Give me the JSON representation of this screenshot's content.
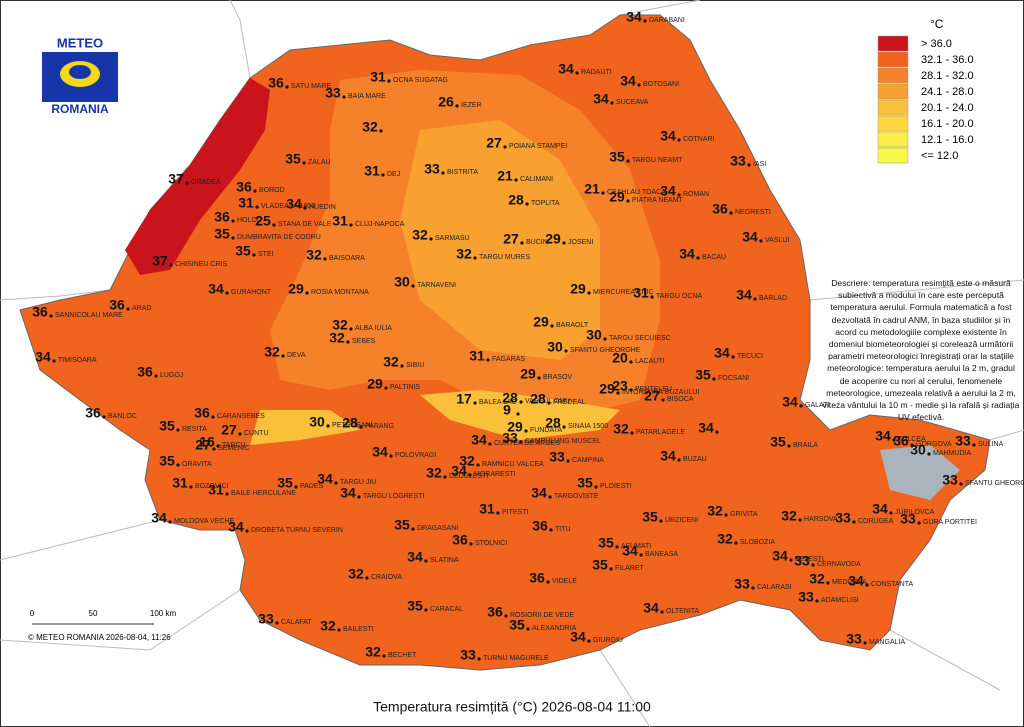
{
  "logo": {
    "top": "METEO",
    "bottom": "ROMANIA"
  },
  "title": "Temperatura resimțită (°C) 2026-08-04 11:00",
  "copyright": "© METEO ROMANIA 2026-08-04, 11:26",
  "scale": {
    "labels": [
      "0",
      "50",
      "100 km"
    ]
  },
  "legend": {
    "title": "°C",
    "items": [
      {
        "label": "> 36.0",
        "color": "#c8141a"
      },
      {
        "label": "32.1 - 36.0",
        "color": "#f0641e"
      },
      {
        "label": "28.1 - 32.0",
        "color": "#f5822a"
      },
      {
        "label": "24.1 - 28.0",
        "color": "#f8a030"
      },
      {
        "label": "20.1 - 24.0",
        "color": "#fbc03a"
      },
      {
        "label": "16.1 - 20.0",
        "color": "#fcd83c"
      },
      {
        "label": "12.1 - 16.0",
        "color": "#fbec48"
      },
      {
        "label": "<= 12.0",
        "color": "#f8f84a"
      }
    ]
  },
  "description": "Descriere: temperatura resimțită este o măsură subiectivă a modului în care este percepută temperatura aerului. Formula matematică a fost dezvoltată în cadrul ANM, în baza studiilor și în acord cu metodologiile complexe existente în domeniul biometeorologiei și corelează următorii parametri meteorologici înregistrați orar la stațiile meteorologice: temperatura aerului la 2 m, gradul de acoperire cu nori al cerului, fenomenele meteorologice, umezeala relativă a aerului la 2 m, viteza vântului la 10 m - medie și la rafală și radiația UV efectivă.",
  "stations": [
    {
      "value": 34,
      "name": "DARABANI"
    },
    {
      "value": 34,
      "name": "RADAUTI"
    },
    {
      "value": 34,
      "name": "BOTOSANI"
    },
    {
      "value": 34,
      "name": "SUCEAVA"
    },
    {
      "value": 34,
      "name": "COTNARI"
    },
    {
      "value": 35,
      "name": "TARGU NEAMT"
    },
    {
      "value": 33,
      "name": "IASI"
    },
    {
      "value": 34,
      "name": "ROMAN"
    },
    {
      "value": 29,
      "name": "PIATRA NEAMT"
    },
    {
      "value": 36,
      "name": "NEGRESTI"
    },
    {
      "value": 34,
      "name": "VASLUI"
    },
    {
      "value": 34,
      "name": "BACAU"
    },
    {
      "value": 31,
      "name": "TARGU OCNA"
    },
    {
      "value": 34,
      "name": "BARLAD"
    },
    {
      "value": 21,
      "name": "CEAHLAU TOACA"
    },
    {
      "value": 29,
      "name": "JOSENI"
    },
    {
      "value": 29,
      "name": "MIERCUREA CIUC"
    },
    {
      "value": 21,
      "name": "CALIMANI"
    },
    {
      "value": 27,
      "name": "POIANA STAMPEI"
    },
    {
      "value": 28,
      "name": "TOPLITA"
    },
    {
      "value": 27,
      "name": "BUCIN"
    },
    {
      "value": 26,
      "name": "IEZER"
    },
    {
      "value": 31,
      "name": "OCNA SUGATAG"
    },
    {
      "value": 36,
      "name": "SATU MARE"
    },
    {
      "value": 33,
      "name": "BAIA MARE"
    },
    {
      "value": 32
    },
    {
      "value": 33,
      "name": "BISTRITA"
    },
    {
      "value": 31,
      "name": "DEJ"
    },
    {
      "value": 35,
      "name": "ZALAU"
    },
    {
      "value": 37,
      "name": "ORADEA"
    },
    {
      "value": 36,
      "name": "BOROD"
    },
    {
      "value": 31,
      "name": "VLADEASA 1800"
    },
    {
      "value": 34,
      "name": "HUEDIN"
    },
    {
      "value": 36,
      "name": "HOLOD"
    },
    {
      "value": 31,
      "name": "CLUJ-NAPOCA"
    },
    {
      "value": 32,
      "name": "SARMASU"
    },
    {
      "value": 25,
      "name": "STANA DE VALE"
    },
    {
      "value": 35,
      "name": "DUMBRAVITA DE CODRU"
    },
    {
      "value": 37,
      "name": "CHISINEU CRIS"
    },
    {
      "value": 35,
      "name": "STEI"
    },
    {
      "value": 32,
      "name": "BAISOARA"
    },
    {
      "value": 32,
      "name": "TARGU MURES"
    },
    {
      "value": 30,
      "name": "TARNAVENI"
    },
    {
      "value": 34,
      "name": "GURAHONT"
    },
    {
      "value": 29,
      "name": "ROSIA MONTANA"
    },
    {
      "value": 36,
      "name": "SANNICOLAU MARE"
    },
    {
      "value": 36,
      "name": "ARAD"
    },
    {
      "value": 32,
      "name": "ALBA IULIA"
    },
    {
      "value": 32,
      "name": "SEBES"
    },
    {
      "value": 29,
      "name": "BARAOLT"
    },
    {
      "value": 30,
      "name": "TARGU SECUIESC"
    },
    {
      "value": 30,
      "name": "SFANTU GHEORGHE"
    },
    {
      "value": 34,
      "name": "TIMISOARA"
    },
    {
      "value": 32,
      "name": "DEVA"
    },
    {
      "value": 32,
      "name": "SIBIU"
    },
    {
      "value": 31,
      "name": "FAGARAS"
    },
    {
      "value": 20,
      "name": "LACAUTI"
    },
    {
      "value": 34,
      "name": "TECUCI"
    },
    {
      "value": 36,
      "name": "LUGOJ"
    },
    {
      "value": 29,
      "name": "PALTINIS"
    },
    {
      "value": 29,
      "name": "BRASOV"
    },
    {
      "value": 29,
      "name": "INTORSURA BUZAULUI"
    },
    {
      "value": 23,
      "name": "PENTELEU"
    },
    {
      "value": 27,
      "name": "BISOCA"
    },
    {
      "value": 35,
      "name": "FOCSANI"
    },
    {
      "value": 34,
      "name": "GALATI"
    },
    {
      "value": 17,
      "name": "BALEA LAC"
    },
    {
      "value": 28,
      "name": "VARFUL OMU"
    },
    {
      "value": 9
    },
    {
      "value": 29,
      "name": "FUNDATA"
    },
    {
      "value": 28,
      "name": "PREDEAL"
    },
    {
      "value": 28,
      "name": "SINAIA 1500"
    },
    {
      "value": 36,
      "name": "BANLOC"
    },
    {
      "value": 36,
      "name": "CARANSEBES"
    },
    {
      "value": 35,
      "name": "RESITA"
    },
    {
      "value": 30,
      "name": "PETROSANI"
    },
    {
      "value": 28,
      "name": "PARANG"
    },
    {
      "value": 27,
      "name": "CUNTU"
    },
    {
      "value": 16,
      "name": "TARCU"
    },
    {
      "value": 27,
      "name": "SEMENIC"
    },
    {
      "value": 34,
      "name": "CURTEA DE ARGES"
    },
    {
      "value": 33,
      "name": "CAMPULUNG MUSCEL"
    },
    {
      "value": 32,
      "name": "PATARLAGELE"
    },
    {
      "value": 34
    },
    {
      "value": 35,
      "name": "BRAILA"
    },
    {
      "value": 34,
      "name": "TULCEA"
    },
    {
      "value": 36,
      "name": "GORGOVA"
    },
    {
      "value": 30,
      "name": "MAHMUDIA"
    },
    {
      "value": 33,
      "name": "SULINA"
    },
    {
      "value": 33,
      "name": "SFANTU GHEORGHE"
    },
    {
      "value": 35,
      "name": "ORAVITA"
    },
    {
      "value": 31,
      "name": "BOZOVICI"
    },
    {
      "value": 31,
      "name": "BAILE HERCULANE"
    },
    {
      "value": 35,
      "name": "PADES"
    },
    {
      "value": 34,
      "name": "TARGU JIU"
    },
    {
      "value": 34,
      "name": "POLOVRAGI"
    },
    {
      "value": 32,
      "name": "RAMNICU VALCEA"
    },
    {
      "value": 34,
      "name": "MORARESTI"
    },
    {
      "value": 32,
      "name": "DEDULESTI"
    },
    {
      "value": 33,
      "name": "CAMPINA"
    },
    {
      "value": 34,
      "name": "BUZAU"
    },
    {
      "value": 35,
      "name": "PLOIESTI"
    },
    {
      "value": 34,
      "name": "TARGU LOGRESTI"
    },
    {
      "value": 31,
      "name": "PITESTI"
    },
    {
      "value": 34,
      "name": "TARGOVISTE"
    },
    {
      "value": 35,
      "name": "URZICENI"
    },
    {
      "value": 32,
      "name": "GRIVITA"
    },
    {
      "value": 32,
      "name": "HARSOVA"
    },
    {
      "value": 33,
      "name": "CORUGEA"
    },
    {
      "value": 34,
      "name": "JURILOVCA"
    },
    {
      "value": 33,
      "name": "GURA PORTITEI"
    },
    {
      "value": 34,
      "name": "MOLDOVA VECHE"
    },
    {
      "value": 34,
      "name": "DROBETA TURNU SEVERIN"
    },
    {
      "value": 35,
      "name": "DRAGASANI"
    },
    {
      "value": 36,
      "name": "TITU"
    },
    {
      "value": 36,
      "name": "STOLNICI"
    },
    {
      "value": 35,
      "name": "AFUMATI"
    },
    {
      "value": 34,
      "name": "BANEASA"
    },
    {
      "value": 32,
      "name": "SLOBOZIA"
    },
    {
      "value": 35,
      "name": "FILARET"
    },
    {
      "value": 34,
      "name": "SLATINA"
    },
    {
      "value": 34,
      "name": "FETESTI"
    },
    {
      "value": 33,
      "name": "CERNAVODA"
    },
    {
      "value": 32,
      "name": "CRAIOVA"
    },
    {
      "value": 36,
      "name": "VIDELE"
    },
    {
      "value": 32,
      "name": "MEDGIDIA"
    },
    {
      "value": 34,
      "name": "CONSTANTA"
    },
    {
      "value": 33,
      "name": "CALARASI"
    },
    {
      "value": 33,
      "name": "ADAMCLISI"
    },
    {
      "value": 35,
      "name": "CARACAL"
    },
    {
      "value": 36,
      "name": "ROSIORII DE VEDE"
    },
    {
      "value": 35,
      "name": "ALEXANDRIA"
    },
    {
      "value": 34,
      "name": "OLTENITA"
    },
    {
      "value": 33,
      "name": "CALAFAT"
    },
    {
      "value": 32,
      "name": "BAILESTI"
    },
    {
      "value": 34,
      "name": "GIURGIU"
    },
    {
      "value": 33,
      "name": "MANGALIA"
    },
    {
      "value": 32,
      "name": "BECHET"
    },
    {
      "value": 33,
      "name": "TURNU MAGURELE"
    }
  ]
}
